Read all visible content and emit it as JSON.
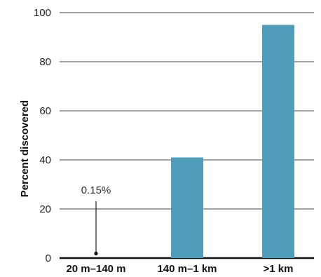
{
  "chart_data": {
    "type": "bar",
    "categories": [
      "20 m–140 m",
      "140 m–1 km",
      ">1 km"
    ],
    "values": [
      0.15,
      41,
      95
    ],
    "ylabel": "Percent discovered",
    "xlabel": "",
    "ylim": [
      0,
      100
    ],
    "yticks": [
      0,
      20,
      40,
      60,
      80,
      100
    ],
    "grid": true,
    "bar_color": "#4f9dbb",
    "annotation": {
      "category_index": 0,
      "text": "0.15%"
    }
  }
}
